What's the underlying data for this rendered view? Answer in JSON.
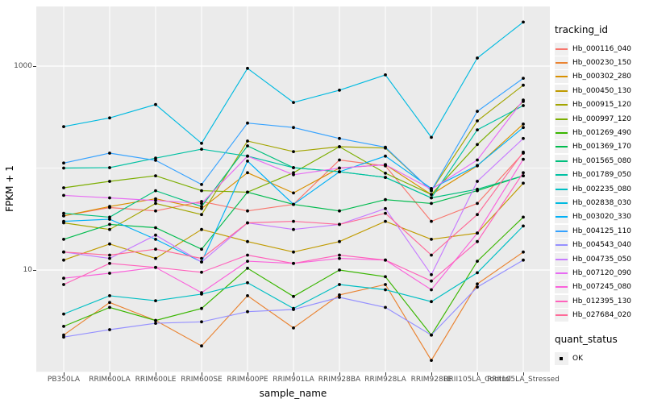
{
  "chart_data": {
    "type": "line",
    "title": "",
    "xlabel": "sample_name",
    "ylabel": "FPKM + 1",
    "yscale": "log10",
    "ylim": [
      1,
      3850
    ],
    "grid": "on",
    "panel_bg": "#EBEBEB",
    "grid_color": "#FFFFFF",
    "point_color": "#000000",
    "legend": {
      "position": "right",
      "color_title": "tracking_id",
      "shape_title": "quant_status",
      "shape_entries": [
        "OK"
      ]
    },
    "y_ticks": [
      {
        "label": "1000",
        "value": 1000
      },
      {
        "label": "10",
        "value": 10
      }
    ],
    "y_gridlines": [
      {
        "value": 1000,
        "major": true
      },
      {
        "value": 100,
        "major": false
      },
      {
        "value": 10,
        "major": true
      },
      {
        "value": 1,
        "major": false
      }
    ],
    "categories": [
      "PB350LA",
      "RRIM600LA",
      "RRIM600LE",
      "RRIM600SE",
      "RRIM600PE",
      "RRIM901LA",
      "RRIM928BA",
      "RRIM928LA",
      "RRIM928LE",
      "RRII105LA_Control",
      "RRII105LA_Stressed"
    ],
    "series": [
      {
        "name": "Hb_000116_040",
        "color": "#F8766D",
        "values": [
          34,
          41,
          38,
          47,
          38,
          44,
          120,
          105,
          30,
          45,
          140
        ]
      },
      {
        "name": "Hb_000230_150",
        "color": "#EA8331",
        "values": [
          2.3,
          4.8,
          3.2,
          1.8,
          5.6,
          2.7,
          5.7,
          7.2,
          1.3,
          7.3,
          15
        ]
      },
      {
        "name": "Hb_000302_280",
        "color": "#D89000",
        "values": [
          34,
          42,
          50,
          40,
          90,
          57,
          100,
          108,
          55,
          105,
          270
        ]
      },
      {
        "name": "Hb_000450_130",
        "color": "#C09B00",
        "values": [
          12.5,
          18,
          13,
          25,
          19,
          15,
          19,
          30,
          20,
          23,
          71
        ]
      },
      {
        "name": "Hb_000915_120",
        "color": "#A3A500",
        "values": [
          29,
          25,
          45,
          35,
          184,
          145,
          162,
          157,
          60,
          290,
          650
        ]
      },
      {
        "name": "Hb_000997_120",
        "color": "#7CAE00",
        "values": [
          64,
          74,
          84,
          60,
          58,
          90,
          162,
          89,
          55,
          170,
          450
        ]
      },
      {
        "name": "Hb_001269_490",
        "color": "#39B600",
        "values": [
          2.8,
          4.3,
          3.2,
          4.2,
          10.4,
          5.5,
          10,
          8.6,
          2.3,
          12.2,
          33
        ]
      },
      {
        "name": "Hb_001369_170",
        "color": "#00BB4E",
        "values": [
          20,
          28,
          26,
          16,
          58,
          44,
          38,
          49,
          45,
          60,
          84
        ]
      },
      {
        "name": "Hb_001565_080",
        "color": "#00BF7D",
        "values": [
          36,
          33,
          60,
          42,
          165,
          101,
          92,
          81,
          51,
          62,
          84
        ]
      },
      {
        "name": "Hb_001789_050",
        "color": "#00C1A3",
        "values": [
          100,
          101,
          125,
          153,
          131,
          101,
          92,
          81,
          51,
          237,
          410
        ]
      },
      {
        "name": "Hb_002235_080",
        "color": "#00BFC4",
        "values": [
          3.7,
          5.6,
          5.0,
          5.8,
          7.5,
          4.2,
          7.2,
          6.4,
          4.9,
          9.4,
          27
        ]
      },
      {
        "name": "Hb_002838_030",
        "color": "#00BAE0",
        "values": [
          255,
          310,
          420,
          175,
          950,
          440,
          580,
          820,
          200,
          1200,
          2700
        ]
      },
      {
        "name": "Hb_003020_330",
        "color": "#00B0F6",
        "values": [
          30,
          31.5,
          20,
          12,
          117,
          44,
          92,
          131,
          63,
          106,
          250
        ]
      },
      {
        "name": "Hb_004125_110",
        "color": "#35A2FF",
        "values": [
          112,
          140,
          119,
          69,
          276,
          250,
          195,
          160,
          60,
          360,
          760
        ]
      },
      {
        "name": "Hb_004543_040",
        "color": "#9590FF",
        "values": [
          2.2,
          2.6,
          3.0,
          3.1,
          3.9,
          4.1,
          5.4,
          4.3,
          2.3,
          6.8,
          12.5
        ]
      },
      {
        "name": "Hb_004735_050",
        "color": "#C77CFF",
        "values": [
          15,
          13,
          22,
          12,
          29,
          25,
          28,
          40,
          9,
          74,
          195
        ]
      },
      {
        "name": "Hb_007120_090",
        "color": "#E76BF3",
        "values": [
          54,
          51,
          48,
          45,
          131,
          86,
          100,
          108,
          62,
          120,
          465
        ]
      },
      {
        "name": "Hb_007245_080",
        "color": "#FA62DB",
        "values": [
          8.3,
          9.3,
          10.6,
          6.0,
          12.2,
          11.6,
          13,
          12.5,
          6.4,
          23,
          122
        ]
      },
      {
        "name": "Hb_012395_130",
        "color": "#FF62BC",
        "values": [
          7.2,
          11.6,
          10.6,
          9.5,
          14,
          11.6,
          14,
          12.5,
          7.8,
          19,
          90
        ]
      },
      {
        "name": "Hb_027684_020",
        "color": "#FF6A98",
        "values": [
          15,
          14,
          16,
          13,
          29,
          30,
          28,
          36,
          14,
          35,
          143
        ]
      }
    ]
  }
}
